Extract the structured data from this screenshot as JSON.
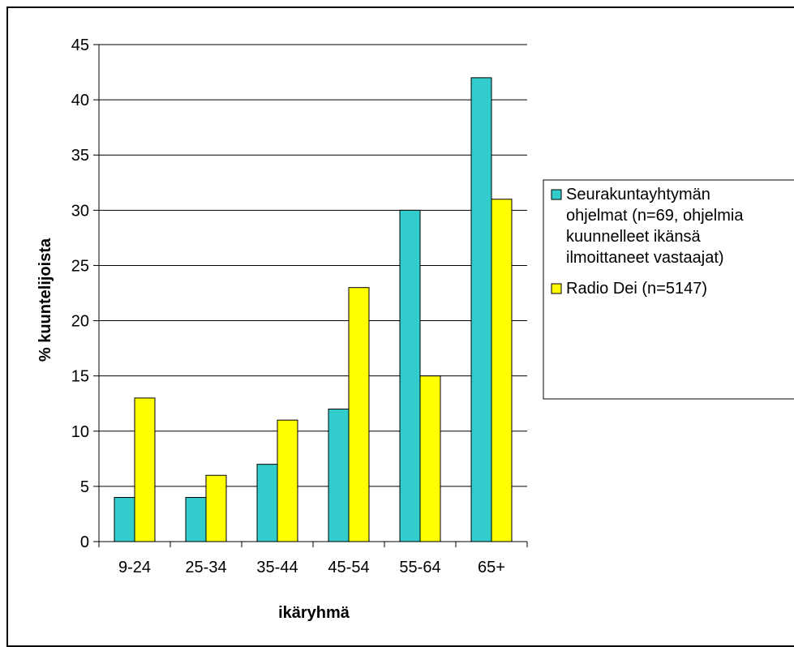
{
  "chart_data": {
    "type": "bar",
    "categories": [
      "9-24",
      "25-34",
      "35-44",
      "45-54",
      "55-64",
      "65+"
    ],
    "series": [
      {
        "name": "Seurakuntayhtymän ohjelmat (n=69, ohjelmia kuunnelleet ikänsä ilmoittaneet vastaajat)",
        "name_lines": [
          "Seurakuntayhtymän",
          "ohjelmat (n=69, ohjelmia",
          "kuunnelleet ikänsä",
          "ilmoittaneet vastaajat)"
        ],
        "values": [
          4,
          4,
          7,
          12,
          30,
          42
        ],
        "color": "#33CCCC"
      },
      {
        "name": "Radio Dei (n=5147)",
        "name_lines": [
          "Radio Dei (n=5147)"
        ],
        "values": [
          13,
          6,
          11,
          23,
          15,
          31
        ],
        "color": "#FFFF00"
      }
    ],
    "xlabel": "ikäryhmä",
    "ylabel": "% kuuntelijoista",
    "ylim": [
      0,
      45
    ],
    "yticks": [
      0,
      5,
      10,
      15,
      20,
      25,
      30,
      35,
      40,
      45
    ],
    "grid": true,
    "legend": "right"
  }
}
